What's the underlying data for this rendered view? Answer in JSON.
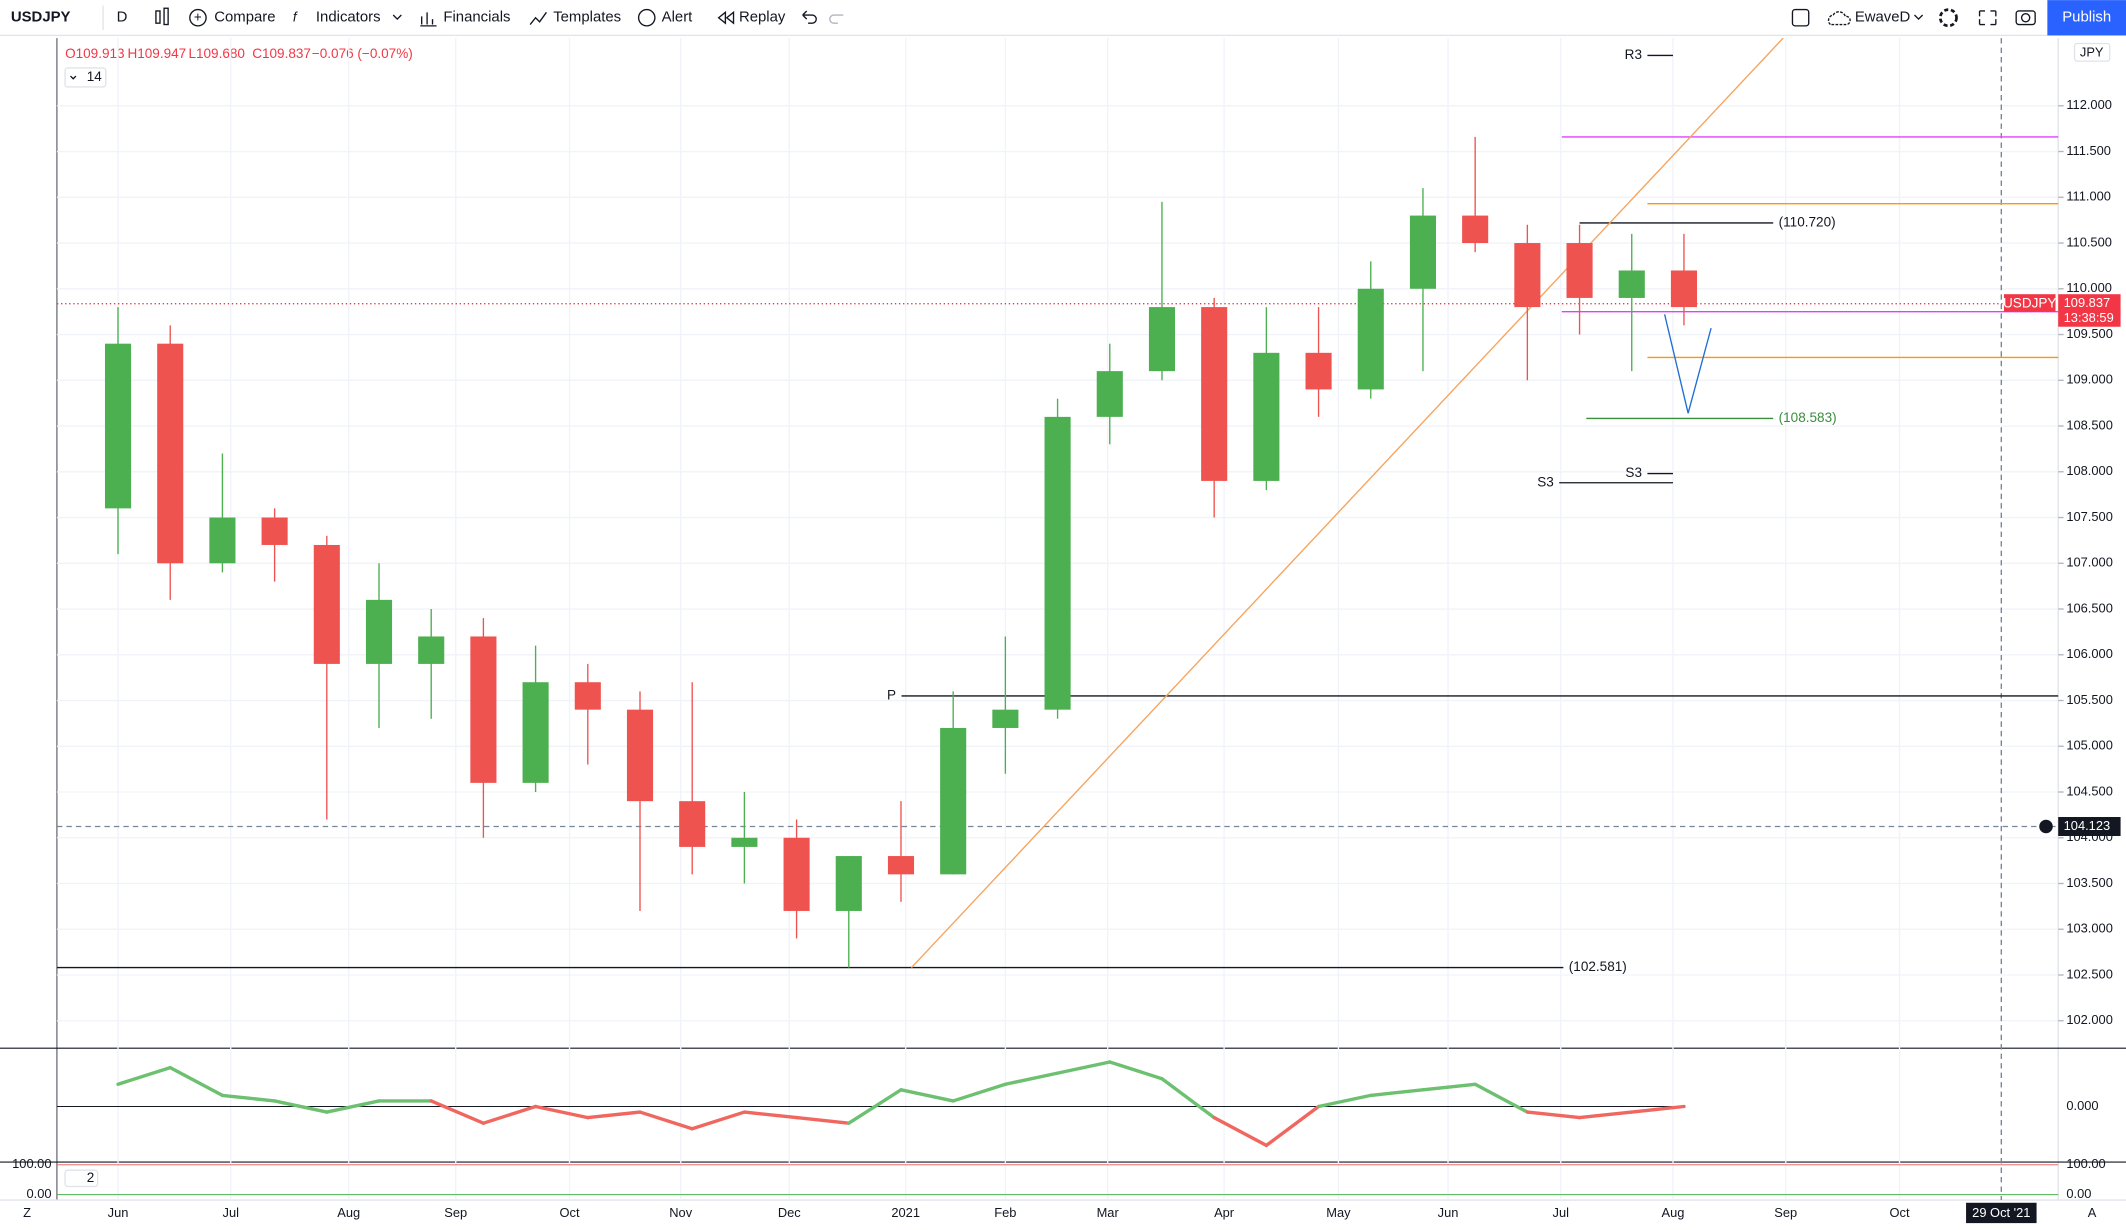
{
  "toolbar": {
    "symbol": "USDJPY",
    "interval": "D",
    "items": [
      "Compare",
      "Indicators",
      "Financials",
      "Templates",
      "Alert",
      "Replay"
    ],
    "layout": "EwaveD",
    "publish": "Publish",
    "scale_buttons": [
      "Z",
      "A"
    ]
  },
  "legend": {
    "open": "O109.913",
    "high": "H109.947",
    "low": "L109.680",
    "close": "C109.837",
    "change": "−0.076 (−0.07%)",
    "indicator": "14"
  },
  "chart_data": {
    "type": "candlestick",
    "currency": "JPY",
    "xlim": [
      -1.17,
      37.17
    ],
    "xticks": [
      {
        "value": 0,
        "label": "Jun"
      },
      {
        "value": 2.16,
        "label": "Jul"
      },
      {
        "value": 4.42,
        "label": "Aug"
      },
      {
        "value": 6.47,
        "label": "Sep"
      },
      {
        "value": 8.65,
        "label": "Oct"
      },
      {
        "value": 10.78,
        "label": "Nov"
      },
      {
        "value": 12.86,
        "label": "Dec"
      },
      {
        "value": 15.09,
        "label": "2021"
      },
      {
        "value": 17.0,
        "label": "Feb"
      },
      {
        "value": 18.96,
        "label": "Mar"
      },
      {
        "value": 21.19,
        "label": "Apr"
      },
      {
        "value": 23.38,
        "label": "May"
      },
      {
        "value": 25.48,
        "label": "Jun"
      },
      {
        "value": 27.64,
        "label": "Jul"
      },
      {
        "value": 29.79,
        "label": "Aug"
      },
      {
        "value": 31.95,
        "label": "Sep"
      },
      {
        "value": 34.13,
        "label": "Oct"
      }
    ],
    "ylim": [
      101.7,
      112.74
    ],
    "yticks": [
      {
        "value": 102,
        "label": "102.000"
      },
      {
        "value": 102.5,
        "label": "102.500"
      },
      {
        "value": 103,
        "label": "103.000"
      },
      {
        "value": 103.5,
        "label": "103.500"
      },
      {
        "value": 104,
        "label": "104.000"
      },
      {
        "value": 104.5,
        "label": "104.500"
      },
      {
        "value": 105,
        "label": "105.000"
      },
      {
        "value": 105.5,
        "label": "105.500"
      },
      {
        "value": 106,
        "label": "106.000"
      },
      {
        "value": 106.5,
        "label": "106.500"
      },
      {
        "value": 107,
        "label": "107.000"
      },
      {
        "value": 107.5,
        "label": "107.500"
      },
      {
        "value": 108,
        "label": "108.000"
      },
      {
        "value": 108.5,
        "label": "108.500"
      },
      {
        "value": 109,
        "label": "109.000"
      },
      {
        "value": 109.5,
        "label": "109.500"
      },
      {
        "value": 110,
        "label": "110.000"
      },
      {
        "value": 110.5,
        "label": "110.500"
      },
      {
        "value": 111,
        "label": "111.000"
      },
      {
        "value": 111.5,
        "label": "111.500"
      },
      {
        "value": 112,
        "label": "112.000"
      }
    ],
    "grid": true,
    "up_color": "#4caf50",
    "down_color": "#ef5350",
    "candles": {
      "open": [
        107.6,
        109.4,
        107.0,
        107.5,
        107.2,
        105.9,
        105.9,
        106.2,
        104.6,
        105.7,
        105.4,
        104.4,
        103.9,
        104.0,
        103.2,
        103.8,
        103.6,
        105.2,
        105.4,
        108.6,
        109.1,
        109.8,
        107.9,
        109.3,
        108.9,
        110.0,
        110.8,
        110.5,
        110.5,
        109.9,
        110.2
      ],
      "high": [
        109.8,
        109.6,
        108.2,
        107.6,
        107.3,
        107.0,
        106.5,
        106.4,
        106.1,
        105.9,
        105.6,
        105.7,
        104.5,
        104.2,
        103.8,
        104.4,
        105.6,
        106.2,
        108.8,
        109.4,
        110.95,
        109.9,
        109.8,
        109.8,
        110.3,
        111.1,
        111.66,
        110.7,
        110.7,
        110.6,
        110.6
      ],
      "low": [
        107.1,
        106.6,
        106.9,
        106.8,
        104.2,
        105.2,
        105.3,
        104.0,
        104.5,
        104.8,
        103.2,
        103.6,
        103.5,
        102.9,
        102.58,
        103.3,
        103.6,
        104.7,
        105.3,
        108.3,
        109.0,
        107.5,
        107.8,
        108.6,
        108.8,
        109.1,
        110.4,
        109.0,
        109.5,
        109.1,
        109.6
      ],
      "close": [
        109.4,
        107.0,
        107.5,
        107.2,
        105.9,
        106.6,
        106.2,
        104.6,
        105.7,
        105.4,
        104.4,
        103.9,
        104.0,
        103.2,
        103.8,
        103.6,
        105.2,
        105.4,
        108.6,
        109.1,
        109.8,
        107.9,
        109.3,
        108.9,
        110.0,
        110.8,
        110.5,
        109.8,
        109.9,
        110.2,
        109.8
      ]
    },
    "levels": [
      {
        "value": 112.55,
        "from": 29.3,
        "to": 29.79,
        "color": "#131722",
        "label": "R3",
        "label_side": "left"
      },
      {
        "value": 111.66,
        "from": 27.66,
        "to": 37.17,
        "color": "#e040fb"
      },
      {
        "value": 110.93,
        "from": 29.3,
        "to": 37.17,
        "color": "#ff9800"
      },
      {
        "value": 110.72,
        "from": 28.0,
        "to": 31.71,
        "color": "#131722",
        "label": "(110.720)",
        "label_side": "right"
      },
      {
        "value": 109.75,
        "from": 27.66,
        "to": 37.17,
        "color": "#e040fb"
      },
      {
        "value": 109.25,
        "from": 29.3,
        "to": 37.17,
        "color": "#ff9800"
      },
      {
        "value": 108.583,
        "from": 28.13,
        "to": 31.71,
        "color": "#388e3c",
        "label": "(108.583)",
        "label_side": "right"
      },
      {
        "value": 107.98,
        "from": 29.3,
        "to": 29.79,
        "color": "#131722",
        "label": "S3",
        "label_side": "left"
      },
      {
        "value": 107.88,
        "from": 27.61,
        "to": 29.79,
        "color": "#131722",
        "label": "S3",
        "label_side": "left"
      },
      {
        "value": 105.55,
        "from": 15.01,
        "to": 37.17,
        "color": "#131722",
        "label": "P",
        "label_side": "left"
      },
      {
        "value": 102.581,
        "from": -1.17,
        "to": 27.69,
        "color": "#131722",
        "label": "(102.581)",
        "label_side": "right"
      }
    ],
    "trendline": {
      "x": [
        15.2,
        31.9
      ],
      "y": [
        102.58,
        112.74
      ],
      "color": "#f7a35c"
    },
    "projection": {
      "x": [
        29.63,
        30.08,
        30.52
      ],
      "y": [
        109.72,
        108.64,
        109.57
      ],
      "color": "#1e6fd1"
    },
    "last_price": {
      "symbol": "USDJPY",
      "value": 109.837,
      "countdown": "13:38:59",
      "color": "#f23645"
    },
    "crosshair": {
      "value": 104.123,
      "x": 36.08,
      "date": "29 Oct '21"
    },
    "oscillator": {
      "ylim": [
        -1,
        1
      ],
      "yticks": [
        {
          "value": 0,
          "label": "0.000"
        }
      ],
      "up_color": "#6cc070",
      "down_color": "#f0675f",
      "values": [
        0.4,
        0.7,
        0.2,
        0.1,
        -0.1,
        0.1,
        0.1,
        -0.3,
        0.0,
        -0.2,
        -0.1,
        -0.4,
        -0.1,
        -0.2,
        -0.3,
        0.3,
        0.1,
        0.4,
        0.6,
        0.8,
        0.5,
        -0.2,
        -0.7,
        0.0,
        0.2,
        0.3,
        0.4,
        -0.1,
        -0.2,
        -0.1,
        0.0
      ]
    },
    "stochastic": {
      "ylim": [
        0,
        100
      ],
      "yticks": [
        {
          "value": 100,
          "label": "100.00"
        },
        {
          "value": 0,
          "label": "0.00"
        }
      ],
      "length": "2"
    }
  }
}
